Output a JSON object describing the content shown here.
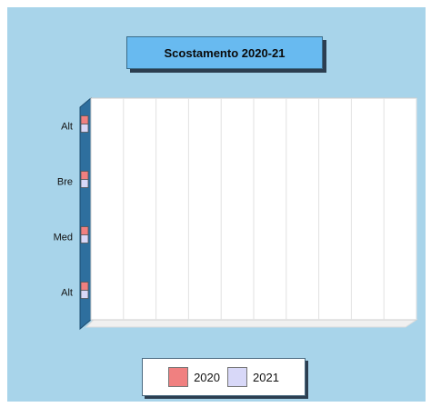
{
  "chart_data": {
    "type": "bar",
    "orientation": "horizontal",
    "title": "Scostamento 2020-21",
    "categories": [
      "Alt",
      "Med",
      "Bre",
      "Alt"
    ],
    "series": [
      {
        "name": "2020",
        "values": [
          0,
          0,
          0,
          0
        ]
      },
      {
        "name": "2021",
        "values": [
          0,
          0,
          0,
          0
        ]
      }
    ],
    "xlim": [
      0,
      10
    ],
    "grid": true,
    "legend_position": "bottom",
    "colors": {
      "2020": "#f08080",
      "2021": "#d8d8f8",
      "background": "#a8d4ea",
      "title_box": "#68baf0"
    }
  }
}
